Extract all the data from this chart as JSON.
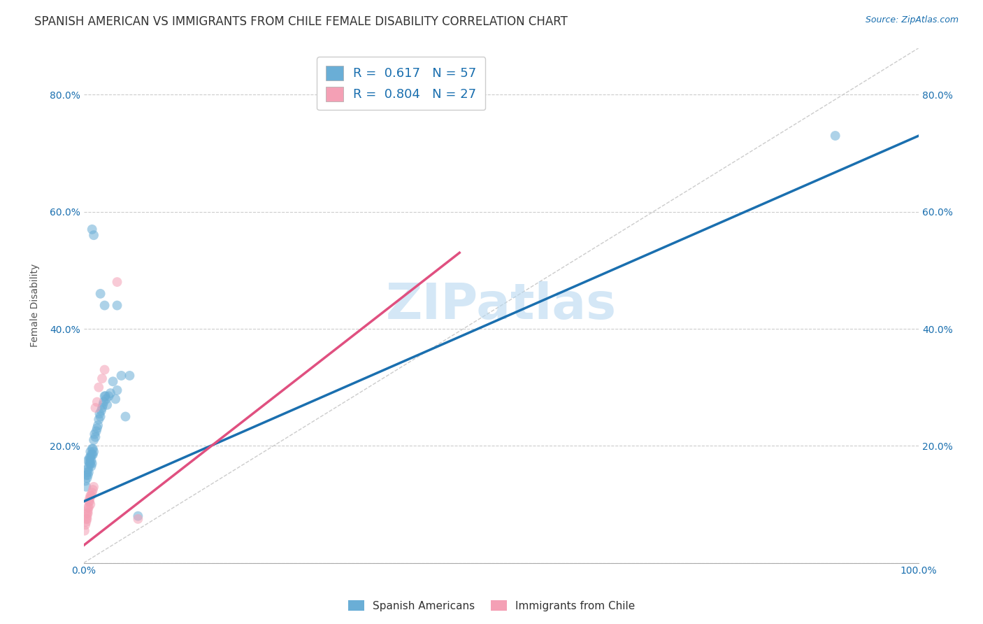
{
  "title": "SPANISH AMERICAN VS IMMIGRANTS FROM CHILE FEMALE DISABILITY CORRELATION CHART",
  "source": "Source: ZipAtlas.com",
  "xlabel": "",
  "ylabel": "Female Disability",
  "r_blue": 0.617,
  "n_blue": 57,
  "r_pink": 0.804,
  "n_pink": 27,
  "blue_color": "#6aaed6",
  "pink_color": "#f4a0b5",
  "blue_line_color": "#1a6faf",
  "pink_line_color": "#e05080",
  "watermark": "ZIPatlas",
  "blue_scatter": [
    [
      0.002,
      0.14
    ],
    [
      0.003,
      0.15
    ],
    [
      0.003,
      0.13
    ],
    [
      0.004,
      0.155
    ],
    [
      0.004,
      0.145
    ],
    [
      0.005,
      0.16
    ],
    [
      0.005,
      0.15
    ],
    [
      0.005,
      0.175
    ],
    [
      0.006,
      0.155
    ],
    [
      0.006,
      0.165
    ],
    [
      0.007,
      0.17
    ],
    [
      0.007,
      0.175
    ],
    [
      0.007,
      0.18
    ],
    [
      0.008,
      0.17
    ],
    [
      0.008,
      0.18
    ],
    [
      0.008,
      0.19
    ],
    [
      0.009,
      0.175
    ],
    [
      0.009,
      0.185
    ],
    [
      0.009,
      0.165
    ],
    [
      0.01,
      0.185
    ],
    [
      0.01,
      0.195
    ],
    [
      0.01,
      0.17
    ],
    [
      0.011,
      0.195
    ],
    [
      0.011,
      0.185
    ],
    [
      0.012,
      0.19
    ],
    [
      0.012,
      0.21
    ],
    [
      0.013,
      0.22
    ],
    [
      0.014,
      0.215
    ],
    [
      0.015,
      0.225
    ],
    [
      0.016,
      0.23
    ],
    [
      0.017,
      0.235
    ],
    [
      0.018,
      0.245
    ],
    [
      0.019,
      0.255
    ],
    [
      0.02,
      0.25
    ],
    [
      0.021,
      0.26
    ],
    [
      0.022,
      0.265
    ],
    [
      0.023,
      0.27
    ],
    [
      0.024,
      0.275
    ],
    [
      0.025,
      0.285
    ],
    [
      0.026,
      0.285
    ],
    [
      0.027,
      0.28
    ],
    [
      0.028,
      0.27
    ],
    [
      0.03,
      0.285
    ],
    [
      0.032,
      0.29
    ],
    [
      0.035,
      0.31
    ],
    [
      0.038,
      0.28
    ],
    [
      0.04,
      0.295
    ],
    [
      0.045,
      0.32
    ],
    [
      0.05,
      0.25
    ],
    [
      0.055,
      0.32
    ],
    [
      0.065,
      0.08
    ],
    [
      0.01,
      0.57
    ],
    [
      0.012,
      0.56
    ],
    [
      0.02,
      0.46
    ],
    [
      0.025,
      0.44
    ],
    [
      0.04,
      0.44
    ],
    [
      0.9,
      0.73
    ]
  ],
  "pink_scatter": [
    [
      0.001,
      0.055
    ],
    [
      0.002,
      0.065
    ],
    [
      0.003,
      0.07
    ],
    [
      0.003,
      0.075
    ],
    [
      0.004,
      0.075
    ],
    [
      0.004,
      0.08
    ],
    [
      0.004,
      0.085
    ],
    [
      0.005,
      0.085
    ],
    [
      0.005,
      0.09
    ],
    [
      0.005,
      0.095
    ],
    [
      0.006,
      0.095
    ],
    [
      0.006,
      0.105
    ],
    [
      0.007,
      0.105
    ],
    [
      0.007,
      0.11
    ],
    [
      0.008,
      0.1
    ],
    [
      0.008,
      0.115
    ],
    [
      0.009,
      0.115
    ],
    [
      0.01,
      0.12
    ],
    [
      0.011,
      0.125
    ],
    [
      0.012,
      0.13
    ],
    [
      0.014,
      0.265
    ],
    [
      0.016,
      0.275
    ],
    [
      0.018,
      0.3
    ],
    [
      0.022,
      0.315
    ],
    [
      0.025,
      0.33
    ],
    [
      0.065,
      0.075
    ],
    [
      0.04,
      0.48
    ]
  ],
  "blue_line": [
    0.0,
    1.0,
    0.105,
    0.73
  ],
  "pink_line": [
    0.0,
    0.45,
    0.03,
    0.53
  ],
  "xmin": 0.0,
  "xmax": 1.0,
  "ymin": 0.0,
  "ymax": 0.88,
  "xticks": [
    0.0,
    0.2,
    0.4,
    0.6,
    0.8,
    1.0
  ],
  "yticks": [
    0.0,
    0.2,
    0.4,
    0.6,
    0.8
  ],
  "xticklabels": [
    "0.0%",
    "",
    "",
    "",
    "",
    "100.0%"
  ],
  "yticklabels": [
    "",
    "20.0%",
    "40.0%",
    "60.0%",
    "80.0%"
  ],
  "right_yticks": [
    0.2,
    0.4,
    0.6,
    0.8
  ],
  "right_yticklabels": [
    "20.0%",
    "40.0%",
    "60.0%",
    "80.0%"
  ],
  "grid_color": "#cccccc",
  "background_color": "#ffffff",
  "title_fontsize": 12,
  "axis_label_fontsize": 10,
  "tick_fontsize": 10,
  "legend_fontsize": 13,
  "marker_size": 10,
  "marker_alpha": 0.55
}
